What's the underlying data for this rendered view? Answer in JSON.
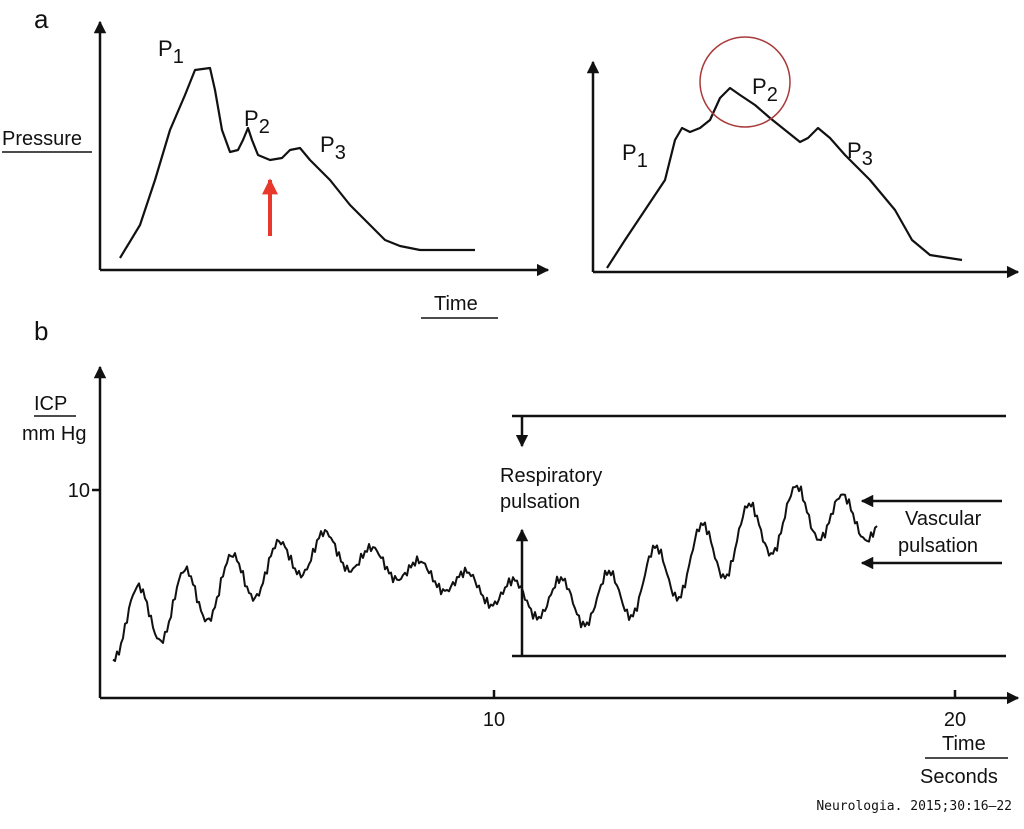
{
  "panel_a": {
    "label": "a",
    "y_label": "Pressure",
    "x_label": "Time",
    "left": {
      "peaks": [
        {
          "letter": "P",
          "sub": "1"
        },
        {
          "letter": "P",
          "sub": "2"
        },
        {
          "letter": "P",
          "sub": "3"
        }
      ]
    },
    "right": {
      "peaks": [
        {
          "letter": "P",
          "sub": "1"
        },
        {
          "letter": "P",
          "sub": "2"
        },
        {
          "letter": "P",
          "sub": "3"
        }
      ]
    }
  },
  "panel_b": {
    "label": "b",
    "y_label": [
      "ICP",
      "mm Hg"
    ],
    "y_tick": "10",
    "x_ticks": [
      "10",
      "20"
    ],
    "respiratory": [
      "Respiratory",
      "pulsation"
    ],
    "vascular": [
      "Vascular",
      "pulsation"
    ],
    "x_label": [
      "Time",
      "Seconds"
    ]
  },
  "source": "Neurologia. 2015;30:16–22"
}
